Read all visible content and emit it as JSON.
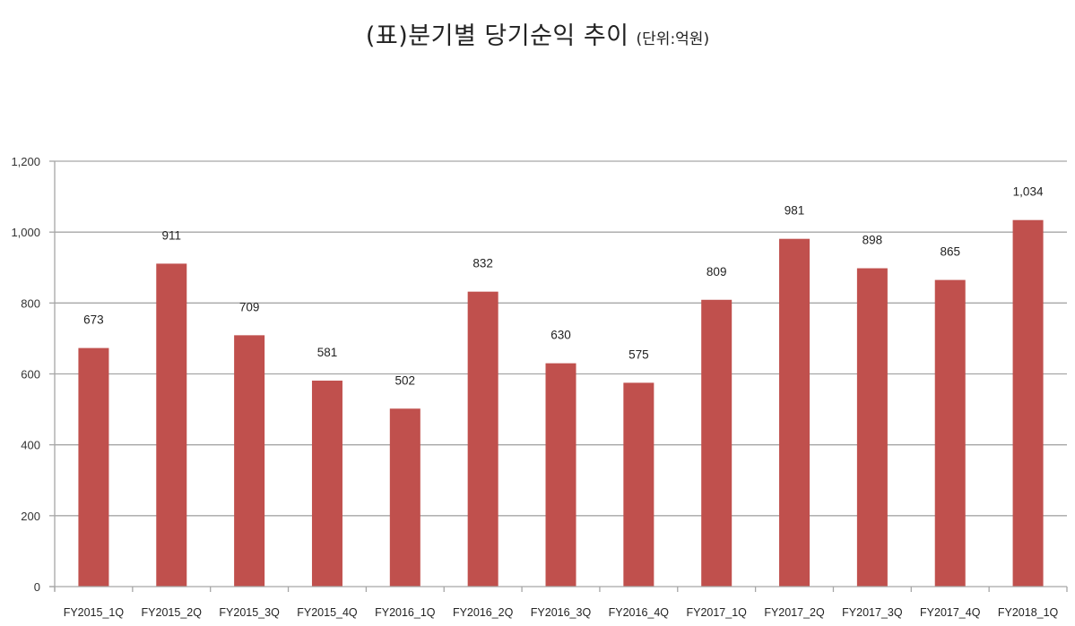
{
  "title": {
    "main": "(표)분기별 당기순익 추이",
    "unit": "(단위:억원)"
  },
  "colors": {
    "bar": "#c0504d",
    "grid": "#a6a6a6",
    "axis": "#a6a6a6"
  },
  "chart_data": {
    "type": "bar",
    "title": "(표)분기별 당기순익 추이",
    "subtitle": "(단위:억원)",
    "xlabel": "",
    "ylabel": "",
    "categories": [
      "FY2015_1Q",
      "FY2015_2Q",
      "FY2015_3Q",
      "FY2015_4Q",
      "FY2016_1Q",
      "FY2016_2Q",
      "FY2016_3Q",
      "FY2016_4Q",
      "FY2017_1Q",
      "FY2017_2Q",
      "FY2017_3Q",
      "FY2017_4Q",
      "FY2018_1Q"
    ],
    "series": [
      {
        "name": "당기순익",
        "values": [
          673,
          911,
          709,
          581,
          502,
          832,
          630,
          575,
          809,
          981,
          898,
          865,
          1034
        ]
      }
    ],
    "value_labels": [
      "673",
      "911",
      "709",
      "581",
      "502",
      "832",
      "630",
      "575",
      "809",
      "981",
      "898",
      "865",
      "1,034"
    ],
    "ylim": [
      0,
      1200
    ],
    "yticks": [
      0,
      200,
      400,
      600,
      800,
      1000,
      1200
    ],
    "ytick_labels": [
      "0",
      "200",
      "400",
      "600",
      "800",
      "1,000",
      "1,200"
    ],
    "grid": true,
    "legend": "none"
  }
}
